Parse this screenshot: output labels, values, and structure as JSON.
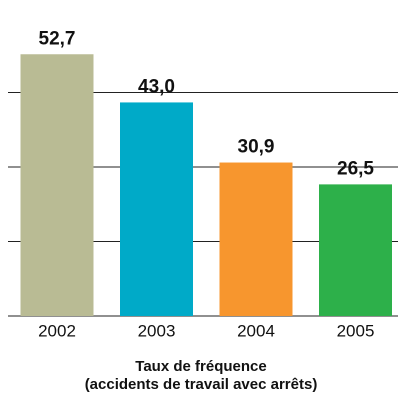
{
  "chart_data": {
    "type": "bar",
    "categories": [
      "2002",
      "2003",
      "2004",
      "2005"
    ],
    "values": [
      52.7,
      43.0,
      30.9,
      26.5
    ],
    "value_labels": [
      "52,7",
      "43,0",
      "30,9",
      "26,5"
    ],
    "colors": [
      "#b9bb94",
      "#00aac8",
      "#f7962e",
      "#2db04a"
    ],
    "ylim": [
      0,
      60
    ],
    "yticks": [
      0,
      15,
      30,
      45
    ],
    "grid": true,
    "xlabel": [
      "Taux de fréquence",
      "(accidents de travail avec arrêts)"
    ]
  }
}
